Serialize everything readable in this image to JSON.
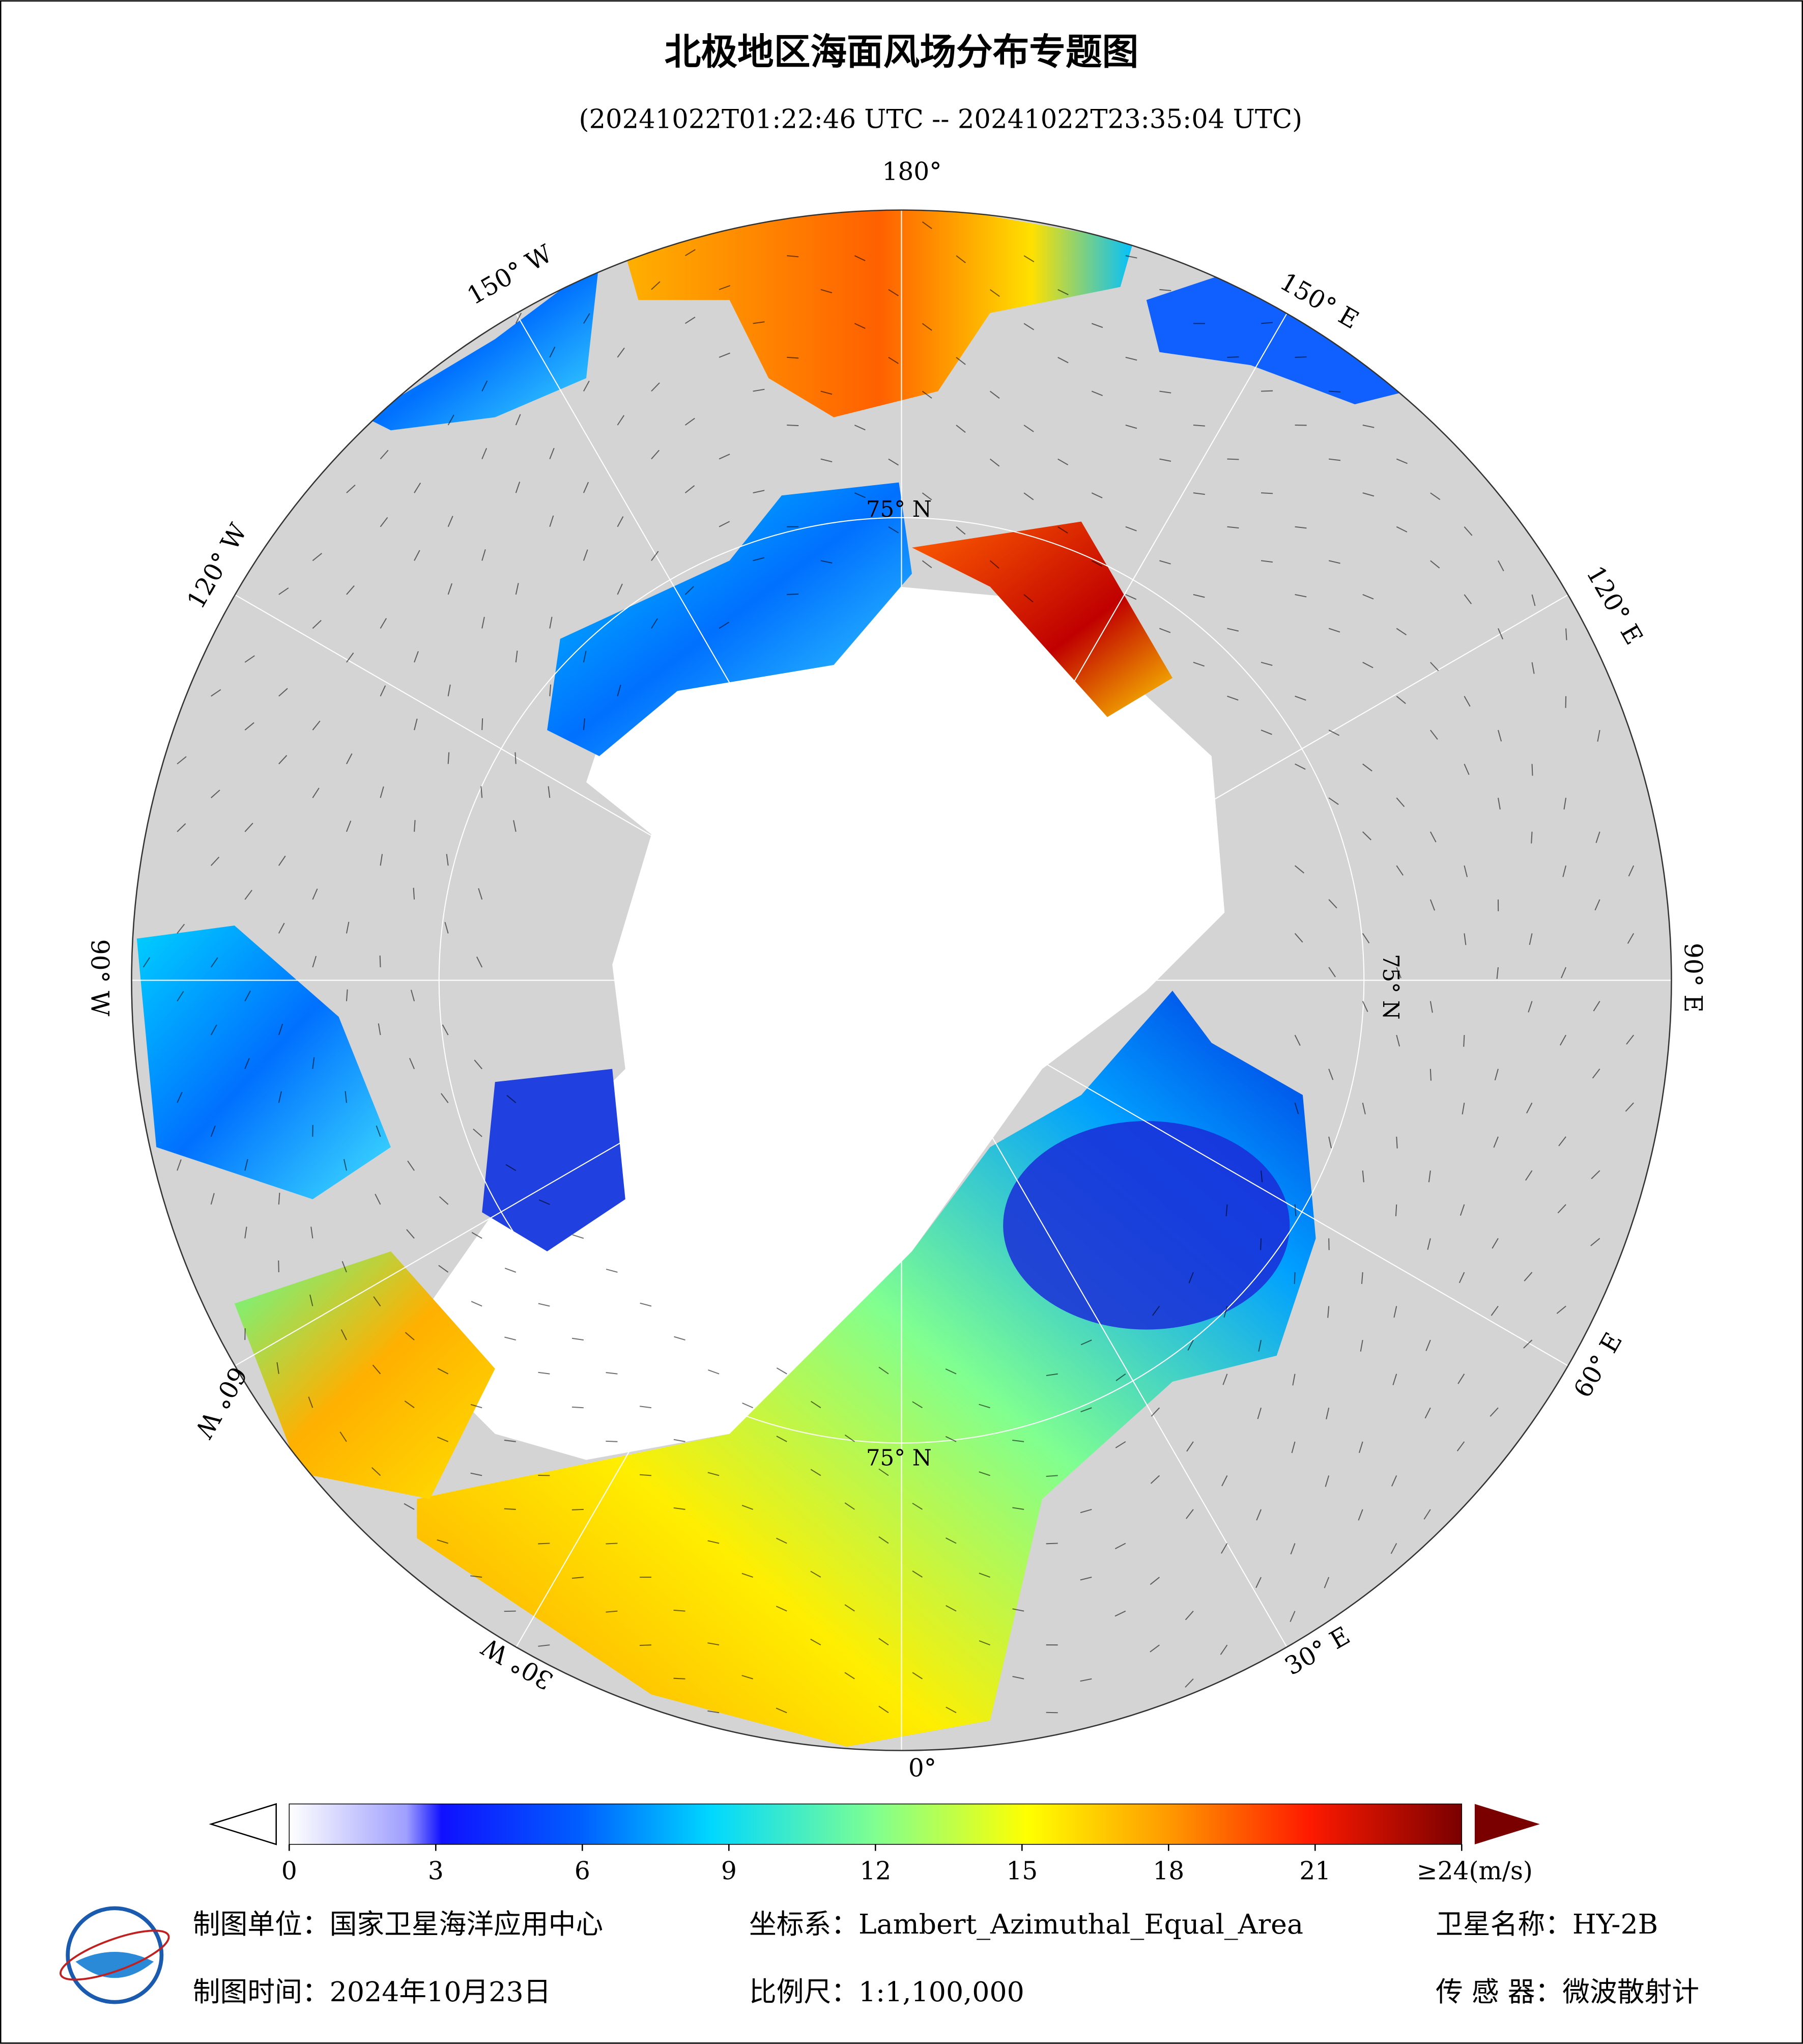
{
  "header": {
    "title": "北极地区海面风场分布专题图",
    "subtitle": "(20241022T01:22:46 UTC -- 20241022T23:35:04 UTC)"
  },
  "map": {
    "longitude_labels": [
      "180°",
      "150° E",
      "120° E",
      "90° E",
      "60° E",
      "30° E",
      "0°",
      "30° W",
      "60° W",
      "90° W",
      "120° W",
      "150° W"
    ],
    "latitude_labels": [
      "75° N",
      "75° N",
      "75° N"
    ]
  },
  "colorbar": {
    "lim": [
      0,
      24
    ],
    "ticks": [
      0,
      3,
      6,
      9,
      12,
      15,
      18,
      21,
      {
        "value": 24,
        "label": "≥24(m/s)"
      }
    ]
  },
  "footer": {
    "unit": "制图单位：国家卫星海洋应用中心",
    "crs": "坐标系：Lambert_Azimuthal_Equal_Area",
    "satellite": "卫星名称：HY-2B",
    "date": "制图时间：2024年10月23日",
    "scale": "比例尺：1:1,100,000",
    "sensor": "传 感 器：微波散射计"
  }
}
